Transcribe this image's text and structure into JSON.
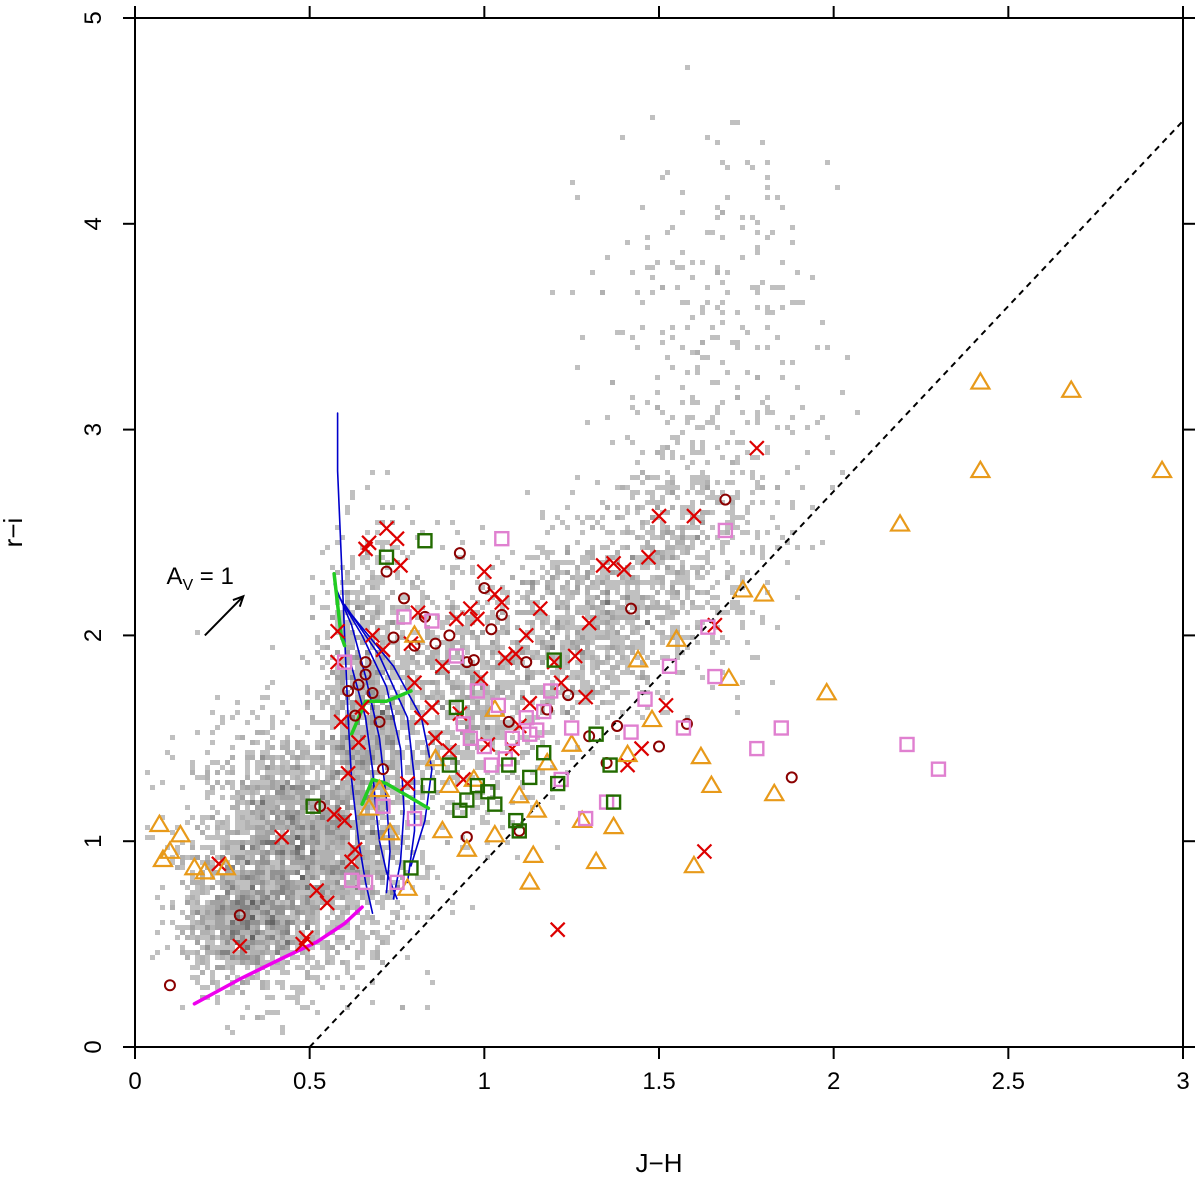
{
  "chart_data": {
    "type": "scatter",
    "xlabel": "J−H",
    "ylabel": "r−i",
    "xlim": [
      0,
      3
    ],
    "ylim": [
      0,
      5
    ],
    "x_ticks": [
      {
        "value": 0,
        "label": "0"
      },
      {
        "value": 0.5,
        "label": "0.5"
      },
      {
        "value": 1,
        "label": "1"
      },
      {
        "value": 1.5,
        "label": "1.5"
      },
      {
        "value": 2,
        "label": "2"
      },
      {
        "value": 2.5,
        "label": "2.5"
      },
      {
        "value": 3,
        "label": "3"
      }
    ],
    "y_ticks": [
      {
        "value": 0,
        "label": "0"
      },
      {
        "value": 1,
        "label": "1"
      },
      {
        "value": 2,
        "label": "2"
      },
      {
        "value": 3,
        "label": "3"
      },
      {
        "value": 4,
        "label": "4"
      },
      {
        "value": 5,
        "label": "5"
      }
    ],
    "grid": false,
    "legend": "none",
    "annotations": [
      {
        "text_main": "A",
        "text_sub": "V",
        "text_rest": " = 1",
        "x": 0.09,
        "y": 2.25,
        "arrow": {
          "x0": 0.2,
          "y0": 2.0,
          "x1": 0.31,
          "y1": 2.19
        }
      }
    ],
    "reference_line": {
      "style": "dashed",
      "color": "#000000",
      "x": [
        0.5,
        3.0
      ],
      "y": [
        0.0,
        4.5
      ]
    },
    "density_background": {
      "color": "#555555",
      "blobs": [
        {
          "cx": 0.45,
          "cy": 0.95,
          "sx": 0.14,
          "sy": 0.3,
          "n": 2200
        },
        {
          "cx": 0.3,
          "cy": 0.6,
          "sx": 0.08,
          "sy": 0.15,
          "n": 700
        },
        {
          "cx": 0.66,
          "cy": 1.55,
          "sx": 0.07,
          "sy": 0.45,
          "n": 1100
        },
        {
          "cx": 0.95,
          "cy": 1.7,
          "sx": 0.14,
          "sy": 0.3,
          "n": 900
        },
        {
          "cx": 1.3,
          "cy": 2.05,
          "sx": 0.12,
          "sy": 0.22,
          "n": 700
        },
        {
          "cx": 1.55,
          "cy": 2.4,
          "sx": 0.12,
          "sy": 0.28,
          "n": 500
        },
        {
          "cx": 1.7,
          "cy": 3.1,
          "sx": 0.15,
          "sy": 0.5,
          "n": 220
        },
        {
          "cx": 1.6,
          "cy": 3.9,
          "sx": 0.15,
          "sy": 0.35,
          "n": 80
        }
      ]
    },
    "tracks": [
      {
        "color": "#0000cc",
        "x": [
          0.58,
          0.58,
          0.59,
          0.6,
          0.61,
          0.62,
          0.64,
          0.66,
          0.68
        ],
        "y": [
          3.08,
          2.8,
          2.4,
          2.0,
          1.6,
          1.3,
          1.0,
          0.8,
          0.65
        ]
      },
      {
        "color": "#0000cc",
        "x": [
          0.57,
          0.62,
          0.66,
          0.7,
          0.72,
          0.73,
          0.72
        ],
        "y": [
          2.25,
          2.05,
          1.8,
          1.5,
          1.2,
          0.95,
          0.75
        ]
      },
      {
        "color": "#0000cc",
        "x": [
          0.58,
          0.65,
          0.72,
          0.76,
          0.77,
          0.76,
          0.74
        ],
        "y": [
          2.2,
          2.0,
          1.75,
          1.45,
          1.15,
          0.9,
          0.72
        ]
      },
      {
        "color": "#0000cc",
        "x": [
          0.6,
          0.7,
          0.78,
          0.8,
          0.8,
          0.78
        ],
        "y": [
          2.15,
          1.9,
          1.6,
          1.3,
          1.05,
          0.8
        ]
      },
      {
        "color": "#0000cc",
        "x": [
          0.62,
          0.74,
          0.82,
          0.85,
          0.83,
          0.79
        ],
        "y": [
          2.1,
          1.85,
          1.6,
          1.35,
          1.1,
          0.88
        ]
      },
      {
        "color": "#0000cc",
        "x": [
          0.62,
          0.66,
          0.68,
          0.69,
          0.7,
          0.72,
          0.75
        ],
        "y": [
          1.85,
          1.6,
          1.35,
          1.15,
          1.0,
          0.85,
          0.72
        ]
      },
      {
        "color": "#22cc22",
        "width": 3.5,
        "x": [
          0.57,
          0.58,
          0.59,
          0.6
        ],
        "y": [
          2.3,
          2.15,
          2.0,
          1.95
        ]
      },
      {
        "color": "#22cc22",
        "width": 3.5,
        "x": [
          0.62,
          0.66,
          0.72,
          0.79
        ],
        "y": [
          1.52,
          1.68,
          1.68,
          1.73
        ]
      },
      {
        "color": "#22cc22",
        "width": 3.5,
        "x": [
          0.65,
          0.68,
          0.72,
          0.78,
          0.84
        ],
        "y": [
          1.18,
          1.3,
          1.28,
          1.22,
          1.16
        ]
      },
      {
        "color": "#ee00ee",
        "width": 3.5,
        "x": [
          0.17,
          0.3,
          0.42,
          0.52,
          0.6,
          0.65
        ],
        "y": [
          0.21,
          0.33,
          0.43,
          0.51,
          0.6,
          0.68
        ]
      }
    ],
    "series": [
      {
        "marker": "cross",
        "color": "#dd0000",
        "points": [
          [
            0.24,
            0.89
          ],
          [
            0.3,
            0.49
          ],
          [
            0.42,
            1.02
          ],
          [
            0.48,
            0.5
          ],
          [
            0.49,
            0.53
          ],
          [
            0.52,
            0.76
          ],
          [
            0.55,
            0.7
          ],
          [
            0.57,
            1.13
          ],
          [
            0.58,
            1.87
          ],
          [
            0.58,
            2.02
          ],
          [
            0.59,
            1.58
          ],
          [
            0.6,
            1.1
          ],
          [
            0.61,
            1.33
          ],
          [
            0.62,
            0.9
          ],
          [
            0.63,
            0.96
          ],
          [
            0.64,
            1.48
          ],
          [
            0.65,
            1.65
          ],
          [
            0.66,
            2.42
          ],
          [
            0.67,
            2.45
          ],
          [
            0.68,
            2.0
          ],
          [
            0.71,
            1.93
          ],
          [
            0.72,
            2.52
          ],
          [
            0.75,
            2.47
          ],
          [
            0.76,
            2.34
          ],
          [
            0.78,
            1.28
          ],
          [
            0.79,
            1.96
          ],
          [
            0.8,
            1.77
          ],
          [
            0.81,
            2.11
          ],
          [
            0.82,
            1.6
          ],
          [
            0.85,
            1.65
          ],
          [
            0.86,
            1.5
          ],
          [
            0.88,
            1.85
          ],
          [
            0.9,
            1.44
          ],
          [
            0.92,
            2.08
          ],
          [
            0.94,
            1.3
          ],
          [
            0.96,
            2.13
          ],
          [
            0.98,
            2.08
          ],
          [
            1.0,
            2.31
          ],
          [
            1.01,
            1.47
          ],
          [
            1.03,
            2.2
          ],
          [
            1.05,
            2.16
          ],
          [
            1.06,
            1.89
          ],
          [
            1.08,
            1.45
          ],
          [
            1.1,
            1.56
          ],
          [
            1.12,
            2.0
          ],
          [
            1.16,
            2.13
          ],
          [
            1.2,
            1.87
          ],
          [
            1.22,
            1.77
          ],
          [
            1.26,
            1.9
          ],
          [
            1.3,
            2.06
          ],
          [
            1.34,
            2.34
          ],
          [
            1.37,
            2.35
          ],
          [
            1.4,
            2.32
          ],
          [
            1.41,
            1.37
          ],
          [
            1.45,
            1.45
          ],
          [
            1.47,
            2.38
          ],
          [
            1.5,
            2.58
          ],
          [
            1.52,
            1.66
          ],
          [
            1.6,
            2.58
          ],
          [
            1.63,
            0.95
          ],
          [
            1.66,
            2.05
          ],
          [
            1.78,
            2.91
          ],
          [
            1.21,
            0.57
          ],
          [
            1.29,
            1.7
          ],
          [
            1.13,
            1.67
          ],
          [
            1.09,
            1.91
          ],
          [
            0.99,
            1.79
          ],
          [
            0.93,
            1.62
          ]
        ]
      },
      {
        "marker": "circle",
        "color": "#8b0000",
        "points": [
          [
            0.1,
            0.3
          ],
          [
            0.3,
            0.64
          ],
          [
            0.53,
            1.17
          ],
          [
            0.61,
            1.73
          ],
          [
            0.63,
            1.61
          ],
          [
            0.64,
            1.76
          ],
          [
            0.66,
            1.81
          ],
          [
            0.68,
            1.72
          ],
          [
            0.7,
            1.58
          ],
          [
            0.72,
            2.31
          ],
          [
            0.74,
            1.99
          ],
          [
            0.77,
            2.18
          ],
          [
            0.8,
            1.95
          ],
          [
            0.83,
            2.09
          ],
          [
            0.86,
            1.96
          ],
          [
            0.9,
            2.0
          ],
          [
            0.93,
            2.4
          ],
          [
            0.95,
            1.87
          ],
          [
            0.97,
            1.88
          ],
          [
            1.0,
            2.23
          ],
          [
            1.02,
            2.03
          ],
          [
            1.05,
            2.1
          ],
          [
            1.07,
            1.58
          ],
          [
            1.12,
            1.87
          ],
          [
            1.18,
            1.64
          ],
          [
            1.24,
            1.71
          ],
          [
            1.3,
            1.51
          ],
          [
            1.35,
            1.38
          ],
          [
            1.38,
            1.56
          ],
          [
            1.42,
            2.13
          ],
          [
            1.5,
            1.46
          ],
          [
            1.58,
            1.57
          ],
          [
            1.69,
            2.66
          ],
          [
            1.88,
            1.31
          ],
          [
            0.95,
            1.02
          ],
          [
            1.1,
            1.05
          ],
          [
            0.66,
            1.87
          ],
          [
            0.71,
            1.35
          ]
        ]
      },
      {
        "marker": "triangle",
        "color": "#e89a1a",
        "points": [
          [
            0.07,
            1.08
          ],
          [
            0.08,
            0.91
          ],
          [
            0.1,
            0.95
          ],
          [
            0.13,
            1.03
          ],
          [
            0.17,
            0.87
          ],
          [
            0.2,
            0.85
          ],
          [
            0.26,
            0.87
          ],
          [
            0.67,
            1.16
          ],
          [
            0.7,
            1.25
          ],
          [
            0.73,
            1.04
          ],
          [
            0.78,
            0.77
          ],
          [
            0.8,
            2.0
          ],
          [
            0.86,
            1.4
          ],
          [
            0.88,
            1.05
          ],
          [
            0.9,
            1.27
          ],
          [
            0.95,
            0.96
          ],
          [
            0.97,
            1.3
          ],
          [
            1.03,
            1.03
          ],
          [
            1.1,
            1.22
          ],
          [
            1.14,
            0.93
          ],
          [
            1.13,
            0.8
          ],
          [
            1.18,
            1.38
          ],
          [
            1.25,
            1.47
          ],
          [
            1.28,
            1.1
          ],
          [
            1.32,
            0.9
          ],
          [
            1.37,
            1.07
          ],
          [
            1.41,
            1.42
          ],
          [
            1.44,
            1.88
          ],
          [
            1.55,
            1.98
          ],
          [
            1.6,
            0.88
          ],
          [
            1.62,
            1.41
          ],
          [
            1.65,
            1.27
          ],
          [
            1.7,
            1.79
          ],
          [
            1.74,
            2.22
          ],
          [
            1.8,
            2.2
          ],
          [
            1.83,
            1.23
          ],
          [
            1.98,
            1.72
          ],
          [
            2.19,
            2.54
          ],
          [
            2.42,
            3.23
          ],
          [
            2.42,
            2.8
          ],
          [
            2.68,
            3.19
          ],
          [
            2.94,
            2.8
          ],
          [
            1.15,
            1.15
          ],
          [
            1.03,
            1.64
          ],
          [
            1.48,
            1.59
          ]
        ]
      },
      {
        "marker": "square",
        "color": "#e080d0",
        "points": [
          [
            0.6,
            1.87
          ],
          [
            0.62,
            0.81
          ],
          [
            0.66,
            0.8
          ],
          [
            0.71,
            1.17
          ],
          [
            0.75,
            0.8
          ],
          [
            0.77,
            2.09
          ],
          [
            0.8,
            1.11
          ],
          [
            0.85,
            2.07
          ],
          [
            0.92,
            1.9
          ],
          [
            0.94,
            1.57
          ],
          [
            0.96,
            1.5
          ],
          [
            1.0,
            1.46
          ],
          [
            1.02,
            1.37
          ],
          [
            1.04,
            1.66
          ],
          [
            1.05,
            2.47
          ],
          [
            1.08,
            1.5
          ],
          [
            1.12,
            1.6
          ],
          [
            1.15,
            1.54
          ],
          [
            1.17,
            1.63
          ],
          [
            1.19,
            1.73
          ],
          [
            1.22,
            1.3
          ],
          [
            1.25,
            1.55
          ],
          [
            1.29,
            1.11
          ],
          [
            1.35,
            1.19
          ],
          [
            1.42,
            1.53
          ],
          [
            1.46,
            1.69
          ],
          [
            1.53,
            1.85
          ],
          [
            1.57,
            1.55
          ],
          [
            1.64,
            2.04
          ],
          [
            1.66,
            1.8
          ],
          [
            1.69,
            2.51
          ],
          [
            1.78,
            1.45
          ],
          [
            1.85,
            1.55
          ],
          [
            2.21,
            1.47
          ],
          [
            2.3,
            1.35
          ],
          [
            1.13,
            1.52
          ],
          [
            1.06,
            1.4
          ],
          [
            0.98,
            1.73
          ]
        ]
      },
      {
        "marker": "square",
        "color": "#226b00",
        "points": [
          [
            0.51,
            1.17
          ],
          [
            0.72,
            2.38
          ],
          [
            0.83,
            2.46
          ],
          [
            0.9,
            1.37
          ],
          [
            0.93,
            1.15
          ],
          [
            0.95,
            1.2
          ],
          [
            0.98,
            1.27
          ],
          [
            1.03,
            1.18
          ],
          [
            1.07,
            1.37
          ],
          [
            1.09,
            1.1
          ],
          [
            1.1,
            1.05
          ],
          [
            1.13,
            1.31
          ],
          [
            1.17,
            1.43
          ],
          [
            1.21,
            1.28
          ],
          [
            1.32,
            1.52
          ],
          [
            1.36,
            1.37
          ],
          [
            1.37,
            1.19
          ],
          [
            0.79,
            0.87
          ],
          [
            0.84,
            1.27
          ],
          [
            0.92,
            1.65
          ],
          [
            1.01,
            1.24
          ],
          [
            1.2,
            1.88
          ]
        ]
      }
    ]
  }
}
